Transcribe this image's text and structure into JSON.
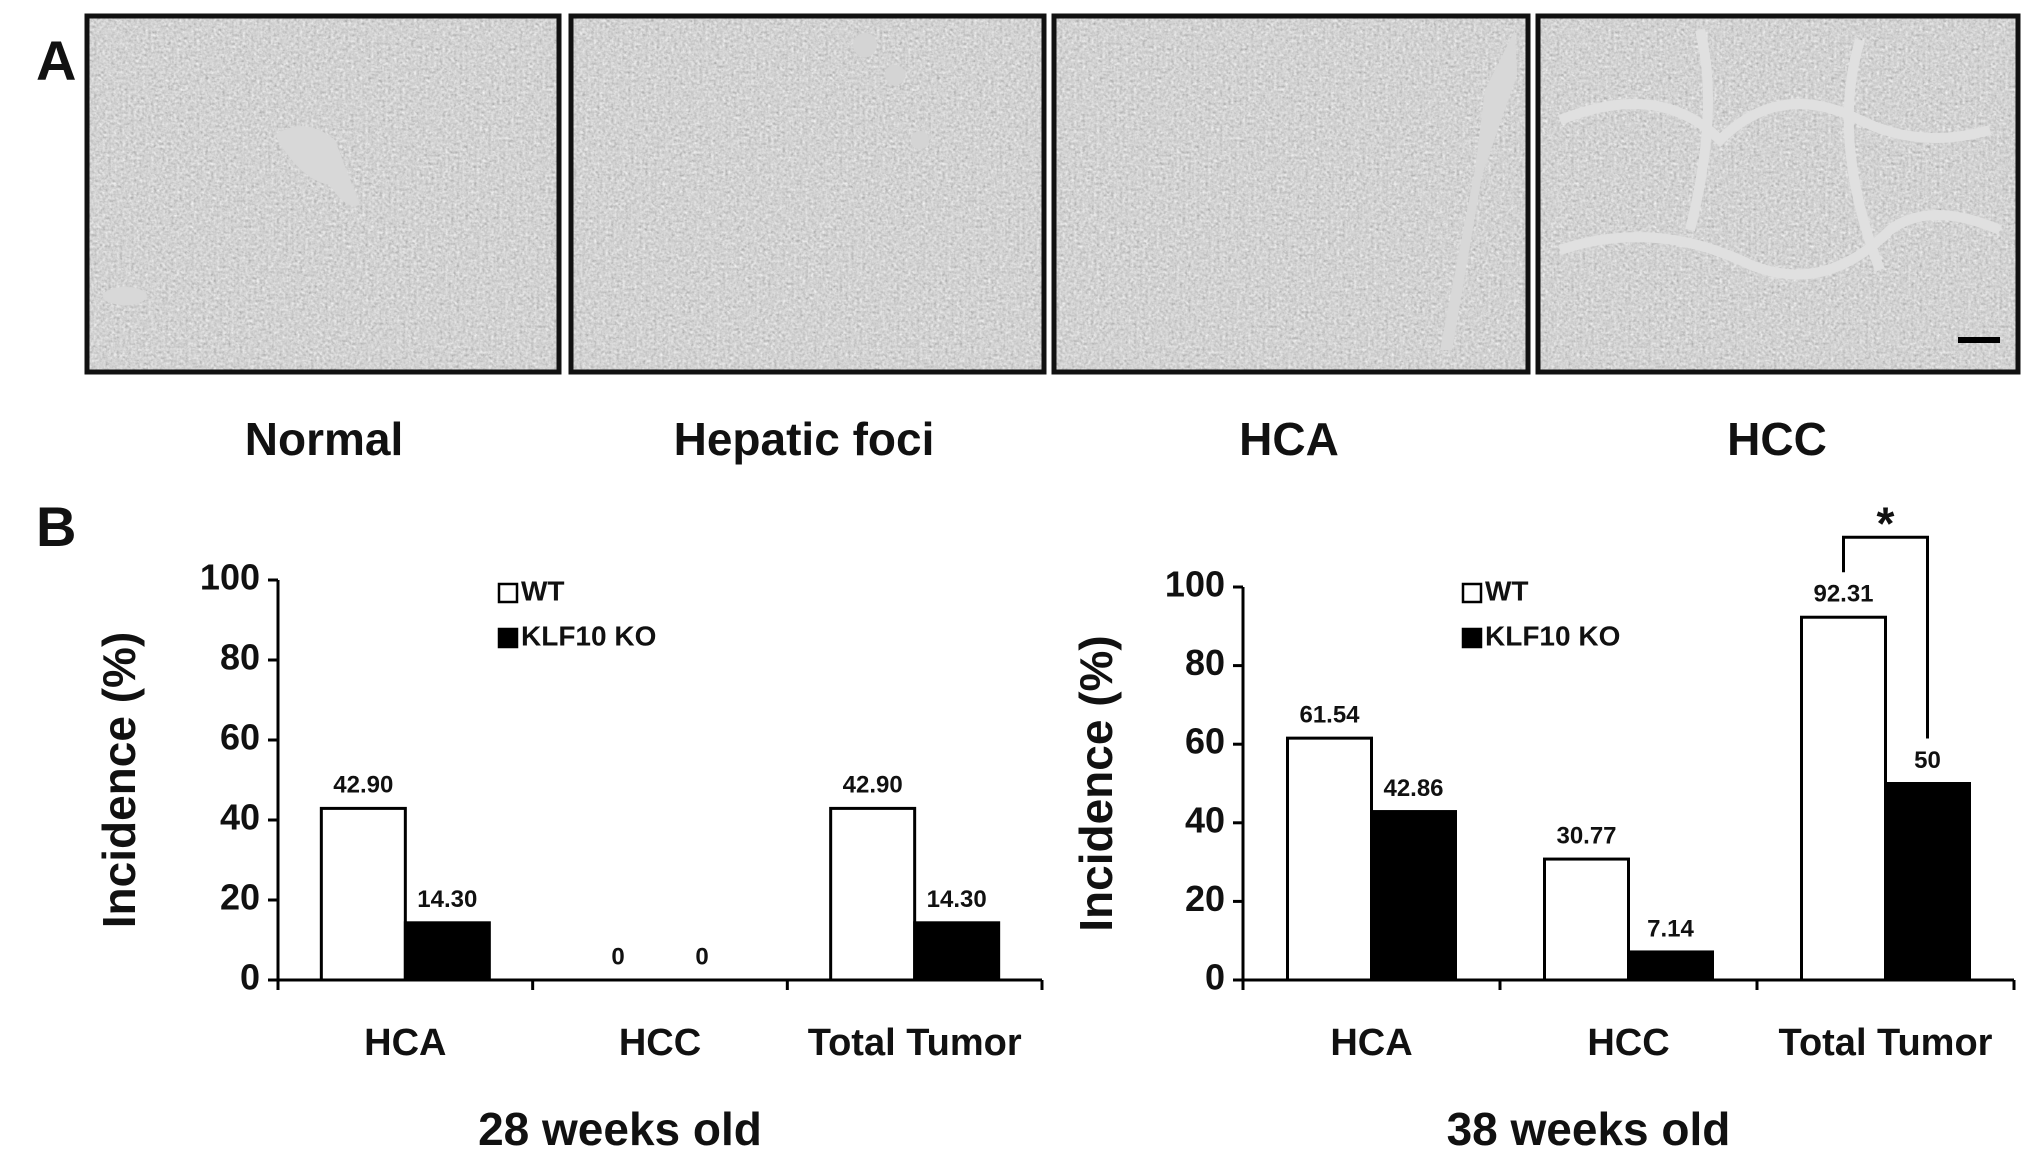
{
  "panel_a": {
    "label": "A",
    "images": [
      {
        "caption": "Normal"
      },
      {
        "caption": "Hepatic foci"
      },
      {
        "caption": "HCA"
      },
      {
        "caption": "HCC"
      }
    ]
  },
  "panel_b": {
    "label": "B"
  },
  "chart_data": [
    {
      "type": "bar",
      "y_label": "Incidence (%)",
      "x_label": "28 weeks old",
      "categories": [
        "HCA",
        "HCC",
        "Total Tumor"
      ],
      "series": [
        {
          "name": "WT",
          "color": "#ffffff",
          "values": [
            42.9,
            0,
            42.9
          ],
          "value_labels": [
            "42.90",
            "0",
            "42.90"
          ]
        },
        {
          "name": "KLF10 KO",
          "color": "#000000",
          "values": [
            14.3,
            0,
            14.3
          ],
          "value_labels": [
            "14.30",
            "0",
            "14.30"
          ]
        }
      ],
      "ylim": [
        0,
        100
      ],
      "yticks": [
        0,
        20,
        40,
        60,
        80,
        100
      ]
    },
    {
      "type": "bar",
      "y_label": "Incidence (%)",
      "x_label": "38 weeks old",
      "categories": [
        "HCA",
        "HCC",
        "Total Tumor"
      ],
      "series": [
        {
          "name": "WT",
          "color": "#ffffff",
          "values": [
            61.54,
            30.77,
            92.31
          ]
        },
        {
          "name": "KLF10 KO",
          "color": "#000000",
          "values": [
            42.86,
            7.14,
            50
          ]
        }
      ],
      "ylim": [
        0,
        100
      ],
      "yticks": [
        0,
        20,
        40,
        60,
        80,
        100
      ],
      "annotation": "*"
    }
  ]
}
